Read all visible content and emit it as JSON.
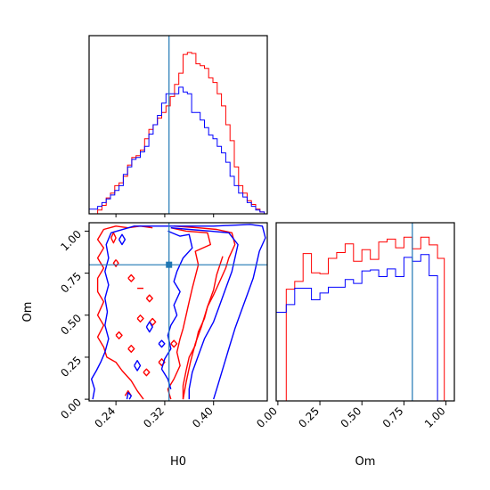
{
  "chart_data": {
    "type": "corner",
    "parameters": [
      "H0",
      "Om"
    ],
    "truth": {
      "H0": 0.327,
      "Om": 0.8
    },
    "colors": {
      "series_red": "#ff0000",
      "series_blue": "#0000ff",
      "truth": "#1f77b4"
    },
    "axes": {
      "H0": {
        "label": "H0",
        "range": [
          0.196,
          0.488
        ],
        "ticks": [
          "0.24",
          "0.32",
          "0.40"
        ],
        "tick_values": [
          0.24,
          0.32,
          0.4
        ]
      },
      "Om": {
        "label": "Om",
        "range": [
          -0.01,
          1.05
        ],
        "ticks": [
          "0.00",
          "0.25",
          "0.50",
          "0.75",
          "1.00"
        ],
        "tick_values": [
          0.0,
          0.25,
          0.5,
          0.75,
          1.0
        ]
      }
    },
    "hist_H0": {
      "edges": [
        0.196,
        0.203,
        0.21,
        0.217,
        0.224,
        0.231,
        0.238,
        0.245,
        0.252,
        0.259,
        0.266,
        0.273,
        0.28,
        0.287,
        0.294,
        0.301,
        0.308,
        0.315,
        0.322,
        0.329,
        0.336,
        0.343,
        0.35,
        0.357,
        0.364,
        0.371,
        0.378,
        0.385,
        0.392,
        0.399,
        0.406,
        0.413,
        0.42,
        0.427,
        0.434,
        0.441,
        0.448,
        0.455,
        0.462,
        0.469,
        0.476,
        0.483
      ],
      "ylim": [
        0,
        190
      ],
      "red": [
        0,
        0,
        4,
        9,
        17,
        22,
        30,
        33,
        40,
        52,
        60,
        62,
        68,
        80,
        90,
        95,
        102,
        108,
        115,
        125,
        138,
        150,
        170,
        172,
        171,
        160,
        158,
        155,
        145,
        140,
        128,
        115,
        95,
        78,
        50,
        30,
        22,
        14,
        10,
        5,
        2
      ],
      "blue": [
        5,
        5,
        8,
        12,
        16,
        20,
        25,
        30,
        42,
        50,
        58,
        60,
        66,
        72,
        85,
        95,
        105,
        118,
        128,
        128,
        128,
        135,
        130,
        128,
        108,
        108,
        100,
        92,
        84,
        80,
        72,
        65,
        55,
        40,
        30,
        22,
        18,
        12,
        8,
        4,
        2
      ]
    },
    "hist_Om": {
      "edges": [
        -0.01,
        0.05,
        0.1,
        0.15,
        0.2,
        0.25,
        0.3,
        0.35,
        0.4,
        0.45,
        0.5,
        0.55,
        0.6,
        0.65,
        0.7,
        0.75,
        0.8,
        0.85,
        0.9,
        0.95,
        0.99,
        1.05
      ],
      "ylim": [
        0,
        185
      ],
      "red": [
        0,
        116,
        124,
        153,
        133,
        132,
        148,
        154,
        163,
        145,
        157,
        147,
        165,
        168,
        159,
        170,
        158,
        170,
        162,
        148,
        0
      ],
      "blue": [
        92,
        100,
        117,
        117,
        105,
        112,
        118,
        118,
        126,
        122,
        135,
        136,
        129,
        137,
        129,
        149,
        145,
        152,
        130,
        0,
        0
      ]
    },
    "contours_2d": {
      "red": [
        [
          [
            0.3,
            1.02
          ],
          [
            0.28,
            1.03
          ],
          [
            0.26,
            1.02
          ],
          [
            0.24,
            1.03
          ],
          [
            0.22,
            1.01
          ],
          [
            0.21,
            0.95
          ],
          [
            0.22,
            0.9
          ],
          [
            0.21,
            0.84
          ],
          [
            0.22,
            0.78
          ],
          [
            0.21,
            0.72
          ],
          [
            0.21,
            0.64
          ],
          [
            0.22,
            0.58
          ],
          [
            0.21,
            0.5
          ],
          [
            0.22,
            0.44
          ],
          [
            0.21,
            0.37
          ],
          [
            0.22,
            0.31
          ],
          [
            0.225,
            0.25
          ],
          [
            0.24,
            0.22
          ],
          [
            0.25,
            0.17
          ],
          [
            0.265,
            0.11
          ],
          [
            0.275,
            0.05
          ],
          [
            0.285,
            0.0
          ]
        ],
        [
          [
            0.335,
            1.03
          ],
          [
            0.375,
            1.02
          ],
          [
            0.405,
            1.01
          ],
          [
            0.43,
            0.99
          ],
          [
            0.435,
            0.92
          ],
          [
            0.425,
            0.84
          ],
          [
            0.42,
            0.78
          ],
          [
            0.41,
            0.7
          ],
          [
            0.4,
            0.62
          ],
          [
            0.39,
            0.55
          ],
          [
            0.385,
            0.48
          ],
          [
            0.375,
            0.4
          ],
          [
            0.37,
            0.32
          ],
          [
            0.36,
            0.25
          ],
          [
            0.355,
            0.17
          ],
          [
            0.35,
            0.08
          ],
          [
            0.35,
            0.0
          ]
        ],
        [
          [
            0.33,
            1.02
          ],
          [
            0.355,
            1.0
          ],
          [
            0.39,
            0.99
          ],
          [
            0.395,
            0.92
          ],
          [
            0.37,
            0.88
          ],
          [
            0.375,
            0.8
          ],
          [
            0.37,
            0.73
          ],
          [
            0.365,
            0.66
          ],
          [
            0.36,
            0.58
          ],
          [
            0.355,
            0.5
          ],
          [
            0.35,
            0.42
          ],
          [
            0.345,
            0.36
          ],
          [
            0.34,
            0.28
          ],
          [
            0.345,
            0.2
          ],
          [
            0.335,
            0.12
          ],
          [
            0.325,
            0.06
          ],
          [
            0.33,
            0.0
          ]
        ],
        [
          [
            0.35,
            0.0
          ],
          [
            0.355,
            0.1
          ],
          [
            0.362,
            0.22
          ],
          [
            0.37,
            0.33
          ],
          [
            0.38,
            0.43
          ],
          [
            0.39,
            0.55
          ],
          [
            0.4,
            0.65
          ],
          [
            0.405,
            0.74
          ],
          [
            0.415,
            0.85
          ]
        ],
        [
          [
            0.232,
            0.96
          ],
          [
            0.236,
            0.99
          ],
          [
            0.24,
            0.96
          ],
          [
            0.236,
            0.93
          ],
          [
            0.232,
            0.96
          ]
        ],
        [
          [
            0.24,
            0.83
          ],
          [
            0.244,
            0.81
          ],
          [
            0.24,
            0.79
          ],
          [
            0.236,
            0.81
          ],
          [
            0.24,
            0.83
          ]
        ],
        [
          [
            0.26,
            0.72
          ],
          [
            0.265,
            0.74
          ],
          [
            0.27,
            0.72
          ],
          [
            0.265,
            0.7
          ],
          [
            0.26,
            0.72
          ]
        ],
        [
          [
            0.275,
            0.66
          ],
          [
            0.285,
            0.66
          ]
        ],
        [
          [
            0.29,
            0.6
          ],
          [
            0.295,
            0.62
          ],
          [
            0.3,
            0.6
          ],
          [
            0.295,
            0.58
          ],
          [
            0.29,
            0.6
          ]
        ],
        [
          [
            0.275,
            0.48
          ],
          [
            0.28,
            0.5
          ],
          [
            0.285,
            0.48
          ],
          [
            0.28,
            0.46
          ],
          [
            0.275,
            0.48
          ]
        ],
        [
          [
            0.295,
            0.46
          ],
          [
            0.3,
            0.48
          ],
          [
            0.305,
            0.46
          ],
          [
            0.3,
            0.44
          ],
          [
            0.295,
            0.46
          ]
        ],
        [
          [
            0.24,
            0.38
          ],
          [
            0.245,
            0.4
          ],
          [
            0.25,
            0.38
          ],
          [
            0.245,
            0.36
          ],
          [
            0.24,
            0.38
          ]
        ],
        [
          [
            0.26,
            0.3
          ],
          [
            0.265,
            0.32
          ],
          [
            0.27,
            0.3
          ],
          [
            0.265,
            0.28
          ],
          [
            0.26,
            0.3
          ]
        ],
        [
          [
            0.285,
            0.16
          ],
          [
            0.29,
            0.18
          ],
          [
            0.295,
            0.16
          ],
          [
            0.29,
            0.14
          ],
          [
            0.285,
            0.16
          ]
        ],
        [
          [
            0.31,
            0.22
          ],
          [
            0.315,
            0.24
          ],
          [
            0.32,
            0.22
          ],
          [
            0.315,
            0.2
          ],
          [
            0.31,
            0.22
          ]
        ],
        [
          [
            0.33,
            0.33
          ],
          [
            0.335,
            0.35
          ],
          [
            0.34,
            0.33
          ],
          [
            0.335,
            0.31
          ],
          [
            0.33,
            0.33
          ]
        ],
        [
          [
            0.255,
            0.02
          ],
          [
            0.26,
            0.05
          ],
          [
            0.265,
            0.02
          ]
        ]
      ],
      "blue": [
        [
          [
            0.202,
            0.0
          ],
          [
            0.205,
            0.06
          ],
          [
            0.2,
            0.12
          ],
          [
            0.208,
            0.17
          ],
          [
            0.215,
            0.22
          ],
          [
            0.222,
            0.28
          ],
          [
            0.228,
            0.36
          ],
          [
            0.222,
            0.44
          ],
          [
            0.226,
            0.52
          ],
          [
            0.222,
            0.6
          ],
          [
            0.228,
            0.68
          ],
          [
            0.222,
            0.76
          ],
          [
            0.228,
            0.84
          ],
          [
            0.224,
            0.92
          ],
          [
            0.232,
            0.99
          ],
          [
            0.27,
            1.03
          ],
          [
            0.33,
            1.03
          ],
          [
            0.4,
            1.03
          ],
          [
            0.46,
            1.04
          ],
          [
            0.48,
            1.03
          ],
          [
            0.485,
            0.96
          ],
          [
            0.475,
            0.88
          ],
          [
            0.47,
            0.8
          ],
          [
            0.465,
            0.72
          ],
          [
            0.455,
            0.62
          ],
          [
            0.445,
            0.52
          ],
          [
            0.435,
            0.42
          ],
          [
            0.425,
            0.3
          ],
          [
            0.415,
            0.18
          ],
          [
            0.405,
            0.06
          ],
          [
            0.4,
            0.0
          ]
        ],
        [
          [
            0.33,
            1.02
          ],
          [
            0.36,
            1.01
          ],
          [
            0.395,
            1.0
          ],
          [
            0.425,
            0.99
          ],
          [
            0.44,
            0.92
          ],
          [
            0.435,
            0.84
          ],
          [
            0.43,
            0.76
          ],
          [
            0.42,
            0.66
          ],
          [
            0.41,
            0.56
          ],
          [
            0.4,
            0.46
          ],
          [
            0.385,
            0.36
          ],
          [
            0.375,
            0.26
          ],
          [
            0.365,
            0.16
          ],
          [
            0.36,
            0.06
          ],
          [
            0.36,
            0.0
          ]
        ],
        [
          [
            0.325,
            1.0
          ],
          [
            0.345,
            0.97
          ],
          [
            0.36,
            0.98
          ],
          [
            0.365,
            0.9
          ],
          [
            0.35,
            0.84
          ],
          [
            0.34,
            0.76
          ],
          [
            0.335,
            0.7
          ],
          [
            0.345,
            0.64
          ],
          [
            0.335,
            0.56
          ],
          [
            0.34,
            0.5
          ],
          [
            0.33,
            0.44
          ],
          [
            0.325,
            0.38
          ],
          [
            0.33,
            0.3
          ],
          [
            0.32,
            0.24
          ],
          [
            0.315,
            0.18
          ],
          [
            0.325,
            0.12
          ],
          [
            0.33,
            0.06
          ]
        ],
        [
          [
            0.245,
            0.95
          ],
          [
            0.25,
            0.98
          ],
          [
            0.255,
            0.95
          ],
          [
            0.25,
            0.92
          ],
          [
            0.245,
            0.95
          ]
        ],
        [
          [
            0.29,
            0.43
          ],
          [
            0.295,
            0.46
          ],
          [
            0.3,
            0.43
          ],
          [
            0.295,
            0.4
          ],
          [
            0.29,
            0.43
          ]
        ],
        [
          [
            0.27,
            0.2
          ],
          [
            0.275,
            0.23
          ],
          [
            0.28,
            0.2
          ],
          [
            0.275,
            0.17
          ],
          [
            0.27,
            0.2
          ]
        ],
        [
          [
            0.31,
            0.33
          ],
          [
            0.315,
            0.35
          ],
          [
            0.32,
            0.33
          ],
          [
            0.315,
            0.31
          ],
          [
            0.31,
            0.33
          ]
        ],
        [
          [
            0.258,
            0.0
          ],
          [
            0.26,
            0.04
          ],
          [
            0.265,
            0.02
          ],
          [
            0.262,
            0.0
          ]
        ]
      ]
    }
  }
}
